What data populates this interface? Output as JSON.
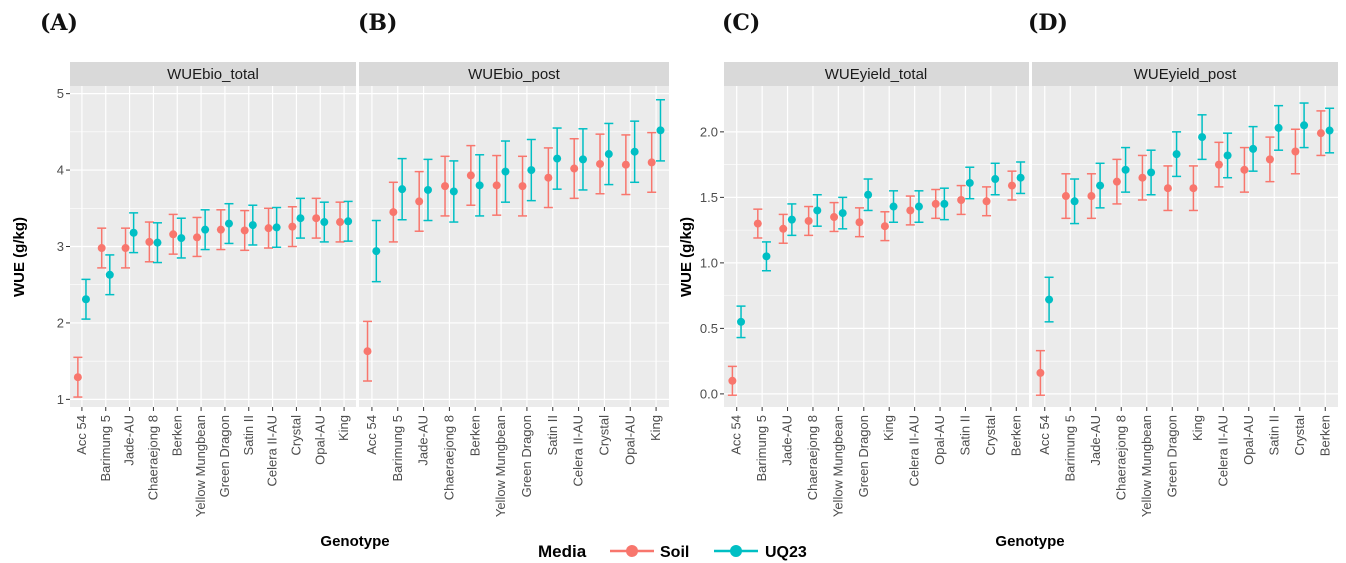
{
  "colors": {
    "soil": "#F8766D",
    "uq23": "#00BFC4",
    "panel_bg": "#EBEBEB",
    "strip_bg": "#D9D9D9",
    "grid": "#FFFFFF"
  },
  "legend": {
    "title": "Media",
    "items": [
      "Soil",
      "UQ23"
    ]
  },
  "chart_data": [
    {
      "type": "scatter",
      "letter": "(A)",
      "strip": "WUEbio_total",
      "ylabel": "WUE (g/kg)",
      "xlabel": "",
      "ylim": [
        0.9,
        5.1
      ],
      "yticks": [
        1,
        2,
        3,
        4,
        5
      ],
      "categories": [
        "Acc 54",
        "Barimung 5",
        "Jade-AU",
        "Chaeraejong 8",
        "Berken",
        "Yellow Mungbean",
        "Green Dragon",
        "Satin II",
        "Celera II-AU",
        "Crystal",
        "Opal-AU",
        "King"
      ],
      "series": [
        {
          "name": "Soil",
          "values": [
            1.29,
            2.98,
            2.98,
            3.06,
            3.16,
            3.12,
            3.22,
            3.21,
            3.24,
            3.26,
            3.37,
            3.32
          ],
          "lower": [
            1.03,
            2.72,
            2.72,
            2.8,
            2.9,
            2.87,
            2.96,
            2.95,
            2.98,
            3.0,
            3.11,
            3.06
          ],
          "upper": [
            1.55,
            3.24,
            3.24,
            3.32,
            3.42,
            3.38,
            3.48,
            3.47,
            3.5,
            3.52,
            3.63,
            3.58
          ]
        },
        {
          "name": "UQ23",
          "values": [
            2.31,
            2.63,
            3.18,
            3.05,
            3.11,
            3.22,
            3.3,
            3.28,
            3.25,
            3.37,
            3.32,
            3.33
          ],
          "lower": [
            2.05,
            2.37,
            2.92,
            2.79,
            2.85,
            2.96,
            3.04,
            3.02,
            2.99,
            3.11,
            3.06,
            3.07
          ],
          "upper": [
            2.57,
            2.89,
            3.44,
            3.31,
            3.37,
            3.48,
            3.56,
            3.54,
            3.51,
            3.63,
            3.58,
            3.59
          ]
        }
      ]
    },
    {
      "type": "scatter",
      "letter": "(B)",
      "strip": "WUEbio_post",
      "ylabel": "",
      "xlabel": "Genotype",
      "ylim": [
        0.9,
        5.1
      ],
      "yticks": [
        1,
        2,
        3,
        4,
        5
      ],
      "categories": [
        "Acc 54",
        "Barimung 5",
        "Jade-AU",
        "Chaeraejong 8",
        "Berken",
        "Yellow Mungbean",
        "Green Dragon",
        "Satin II",
        "Celera II-AU",
        "Crystal",
        "Opal-AU",
        "King"
      ],
      "series": [
        {
          "name": "Soil",
          "values": [
            1.63,
            3.45,
            3.59,
            3.79,
            3.93,
            3.8,
            3.79,
            3.9,
            4.02,
            4.08,
            4.07,
            4.1
          ],
          "lower": [
            1.24,
            3.06,
            3.2,
            3.4,
            3.54,
            3.41,
            3.4,
            3.51,
            3.63,
            3.69,
            3.68,
            3.71
          ],
          "upper": [
            2.02,
            3.84,
            3.98,
            4.18,
            4.32,
            4.19,
            4.18,
            4.29,
            4.41,
            4.47,
            4.46,
            4.49
          ]
        },
        {
          "name": "UQ23",
          "values": [
            2.94,
            3.75,
            3.74,
            3.72,
            3.8,
            3.98,
            4.0,
            4.15,
            4.14,
            4.21,
            4.24,
            4.52
          ],
          "lower": [
            2.54,
            3.35,
            3.34,
            3.32,
            3.4,
            3.58,
            3.6,
            3.75,
            3.74,
            3.81,
            3.84,
            4.12
          ],
          "upper": [
            3.34,
            4.15,
            4.14,
            4.12,
            4.2,
            4.38,
            4.4,
            4.55,
            4.54,
            4.61,
            4.64,
            4.92
          ]
        }
      ]
    },
    {
      "type": "scatter",
      "letter": "(C)",
      "strip": "WUEyield_total",
      "ylabel": "WUE (g/kg)",
      "xlabel": "",
      "ylim": [
        -0.1,
        2.35
      ],
      "yticks": [
        0.0,
        0.5,
        1.0,
        1.5,
        2.0
      ],
      "ytick_labels": [
        "0.0",
        "0.5",
        "1.0",
        "1.5",
        "2.0"
      ],
      "categories": [
        "Acc 54",
        "Barimung 5",
        "Jade-AU",
        "Chaeraejong 8",
        "Yellow Mungbean",
        "Green Dragon",
        "King",
        "Celera II-AU",
        "Opal-AU",
        "Satin II",
        "Crystal",
        "Berken"
      ],
      "series": [
        {
          "name": "Soil",
          "values": [
            0.1,
            1.3,
            1.26,
            1.32,
            1.35,
            1.31,
            1.28,
            1.4,
            1.45,
            1.48,
            1.47,
            1.59
          ],
          "lower": [
            -0.01,
            1.19,
            1.15,
            1.21,
            1.24,
            1.2,
            1.17,
            1.29,
            1.34,
            1.37,
            1.36,
            1.48
          ],
          "upper": [
            0.21,
            1.41,
            1.37,
            1.43,
            1.46,
            1.42,
            1.39,
            1.51,
            1.56,
            1.59,
            1.58,
            1.7
          ]
        },
        {
          "name": "UQ23",
          "values": [
            0.55,
            1.05,
            1.33,
            1.4,
            1.38,
            1.52,
            1.43,
            1.43,
            1.45,
            1.61,
            1.64,
            1.65
          ],
          "lower": [
            0.43,
            0.94,
            1.21,
            1.28,
            1.26,
            1.4,
            1.31,
            1.31,
            1.33,
            1.49,
            1.52,
            1.53
          ],
          "upper": [
            0.67,
            1.16,
            1.45,
            1.52,
            1.5,
            1.64,
            1.55,
            1.55,
            1.57,
            1.73,
            1.76,
            1.77
          ]
        }
      ]
    },
    {
      "type": "scatter",
      "letter": "(D)",
      "strip": "WUEyield_post",
      "ylabel": "",
      "xlabel": "Genotype",
      "ylim": [
        -0.1,
        2.35
      ],
      "yticks": [
        0.0,
        0.5,
        1.0,
        1.5,
        2.0
      ],
      "categories": [
        "Acc 54",
        "Barimung 5",
        "Jade-AU",
        "Chaeraejong 8",
        "Yellow Mungbean",
        "Green Dragon",
        "King",
        "Celera II-AU",
        "Opal-AU",
        "Satin II",
        "Crystal",
        "Berken"
      ],
      "series": [
        {
          "name": "Soil",
          "values": [
            0.16,
            1.51,
            1.51,
            1.62,
            1.65,
            1.57,
            1.57,
            1.75,
            1.71,
            1.79,
            1.85,
            1.99
          ],
          "lower": [
            -0.01,
            1.34,
            1.34,
            1.45,
            1.48,
            1.4,
            1.4,
            1.58,
            1.54,
            1.62,
            1.68,
            1.82
          ],
          "upper": [
            0.33,
            1.68,
            1.68,
            1.79,
            1.82,
            1.74,
            1.74,
            1.92,
            1.88,
            1.96,
            2.02,
            2.16
          ]
        },
        {
          "name": "UQ23",
          "values": [
            0.72,
            1.47,
            1.59,
            1.71,
            1.69,
            1.83,
            1.96,
            1.82,
            1.87,
            2.03,
            2.05,
            2.01
          ],
          "lower": [
            0.55,
            1.3,
            1.42,
            1.54,
            1.52,
            1.66,
            1.79,
            1.65,
            1.7,
            1.86,
            1.88,
            1.84
          ],
          "upper": [
            0.89,
            1.64,
            1.76,
            1.88,
            1.86,
            2.0,
            2.13,
            1.99,
            2.04,
            2.2,
            2.22,
            2.18
          ]
        }
      ]
    }
  ]
}
